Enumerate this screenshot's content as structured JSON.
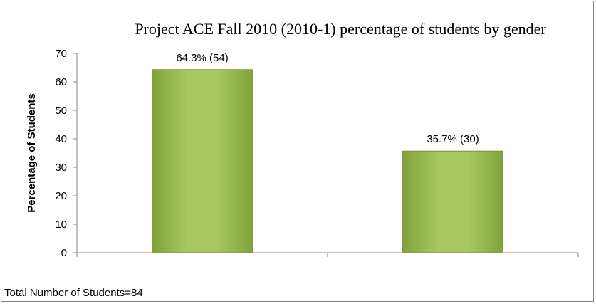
{
  "chart_data": {
    "type": "bar",
    "title": "Project ACE Fall 2010 (2010-1) percentage of students by gender",
    "xlabel": "",
    "ylabel": "Percentage of Students",
    "ylim": [
      0,
      70
    ],
    "yticks": [
      0,
      10,
      20,
      30,
      40,
      50,
      60,
      70
    ],
    "categories": [
      "",
      ""
    ],
    "values": [
      64.3,
      35.7
    ],
    "data_labels": [
      "64.3% (54)",
      "35.7% (30)"
    ],
    "grid": false,
    "legend": "none",
    "bar_color": "#9bbb59",
    "bar_edge_color": "#76923c"
  },
  "footnote": "Total Number of Students=84"
}
